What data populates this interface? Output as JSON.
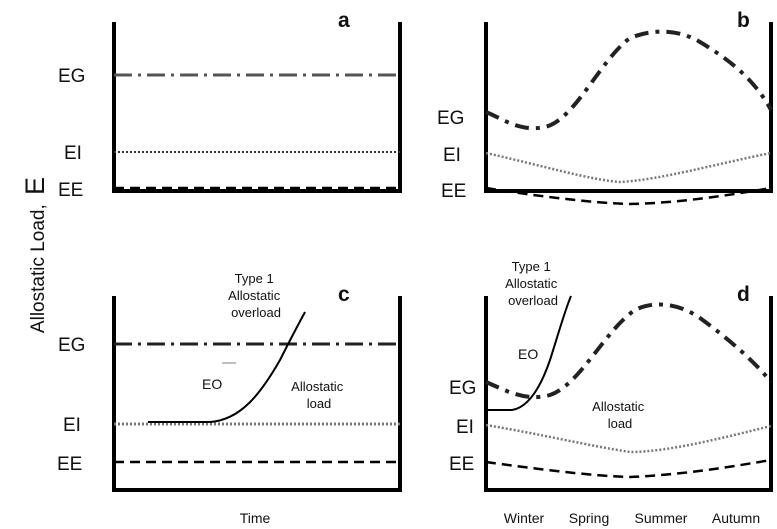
{
  "y_axis_title": {
    "prefix": "Allostatic Load,",
    "symbol": "E"
  },
  "panels": {
    "a": {
      "letter": "a",
      "labels": {
        "eg": "EG",
        "ei": "EI",
        "ee": "EE"
      }
    },
    "b": {
      "letter": "b",
      "labels": {
        "eg": "EG",
        "ei": "EI",
        "ee": "EE"
      }
    },
    "c": {
      "letter": "c",
      "labels": {
        "eg": "EG",
        "ei": "EI",
        "ee": "EE"
      },
      "overload_label": [
        "Type 1",
        "Allostatic",
        "overload"
      ],
      "eo_label": "EO",
      "load_label": [
        "Allostatic",
        "load"
      ]
    },
    "d": {
      "letter": "d",
      "labels": {
        "eg": "EG",
        "ei": "EI",
        "ee": "EE"
      },
      "overload_label": [
        "Type 1",
        "Allostatic",
        "overload"
      ],
      "eo_label": "EO",
      "load_label": [
        "Allostatic",
        "load"
      ]
    }
  },
  "x_captions": {
    "left": "Time",
    "seasons": [
      "Winter",
      "Spring",
      "Summer",
      "Autumn"
    ]
  },
  "colors": {
    "eg_line": "#555555",
    "ei_line": "#777777",
    "ee_line": "#000000",
    "frame": "#000000"
  }
}
